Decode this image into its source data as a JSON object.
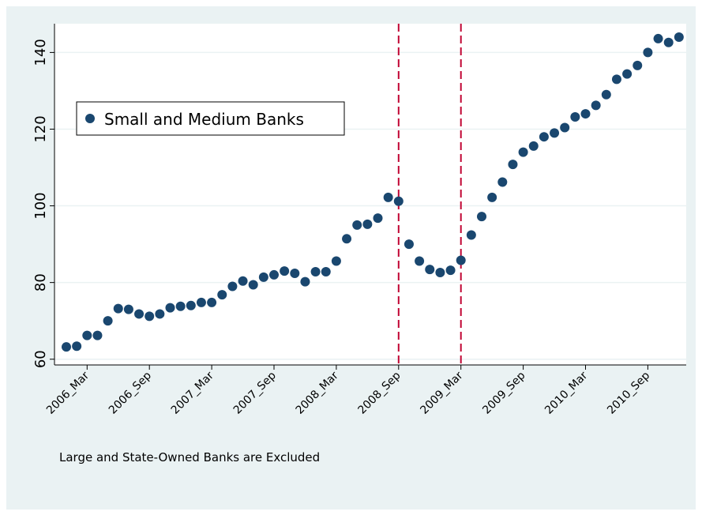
{
  "chart_data": {
    "type": "scatter",
    "title": "",
    "xlabel": "",
    "ylabel": "",
    "x": [
      "2006_Jan",
      "2006_Feb",
      "2006_Mar",
      "2006_Apr",
      "2006_May",
      "2006_Jun",
      "2006_Jul",
      "2006_Aug",
      "2006_Sep",
      "2006_Oct",
      "2006_Nov",
      "2006_Dec",
      "2007_Jan",
      "2007_Feb",
      "2007_Mar",
      "2007_Apr",
      "2007_May",
      "2007_Jun",
      "2007_Jul",
      "2007_Aug",
      "2007_Sep",
      "2007_Oct",
      "2007_Nov",
      "2007_Dec",
      "2008_Jan",
      "2008_Feb",
      "2008_Mar",
      "2008_Apr",
      "2008_May",
      "2008_Jun",
      "2008_Jul",
      "2008_Aug",
      "2008_Sep",
      "2008_Oct",
      "2008_Nov",
      "2008_Dec",
      "2009_Jan",
      "2009_Feb",
      "2009_Mar",
      "2009_Apr",
      "2009_May",
      "2009_Jun",
      "2009_Jul",
      "2009_Aug",
      "2009_Sep",
      "2009_Oct",
      "2009_Nov",
      "2009_Dec",
      "2010_Jan",
      "2010_Feb",
      "2010_Mar",
      "2010_Apr",
      "2010_May",
      "2010_Jun",
      "2010_Jul",
      "2010_Aug",
      "2010_Sep",
      "2010_Oct",
      "2010_Nov",
      "2010_Dec"
    ],
    "series": [
      {
        "name": "Small and Medium Banks",
        "color": "#1a476f",
        "values": [
          63.2,
          63.4,
          66.2,
          66.2,
          70.0,
          73.2,
          73.0,
          71.8,
          71.2,
          71.8,
          73.4,
          73.8,
          74.0,
          74.8,
          74.8,
          76.8,
          79.0,
          80.4,
          79.4,
          81.4,
          82.0,
          83.0,
          82.4,
          80.2,
          82.8,
          82.8,
          85.6,
          91.4,
          95.0,
          95.2,
          96.8,
          102.2,
          101.2,
          90.0,
          85.6,
          83.4,
          82.6,
          83.2,
          85.8,
          92.4,
          97.2,
          102.2,
          106.2,
          110.8,
          114.0,
          115.6,
          118.0,
          119.0,
          120.4,
          123.2,
          124.0,
          126.2,
          129.0,
          133.0,
          134.4,
          136.6,
          140.0,
          143.6,
          142.6,
          144.0
        ]
      }
    ],
    "xticks": [
      "2006_Mar",
      "2006_Sep",
      "2007_Mar",
      "2007_Sep",
      "2008_Mar",
      "2008_Sep",
      "2009_Mar",
      "2009_Sep",
      "2010_Mar",
      "2010_Sep"
    ],
    "yticks": [
      "60",
      "80",
      "100",
      "120",
      "140"
    ],
    "ylim": [
      58.5,
      147.5
    ],
    "reference_lines": [
      "2008_Sep",
      "2009_Mar"
    ],
    "reference_line_color": "#c10534",
    "legend": {
      "labels": [
        "Small and Medium Banks"
      ],
      "position": "inside top-left"
    },
    "note": "Large and State-Owned Banks are Excluded",
    "grid": "horizontal",
    "background_color": "#eaf2f3",
    "plot_background_color": "#ffffff"
  }
}
